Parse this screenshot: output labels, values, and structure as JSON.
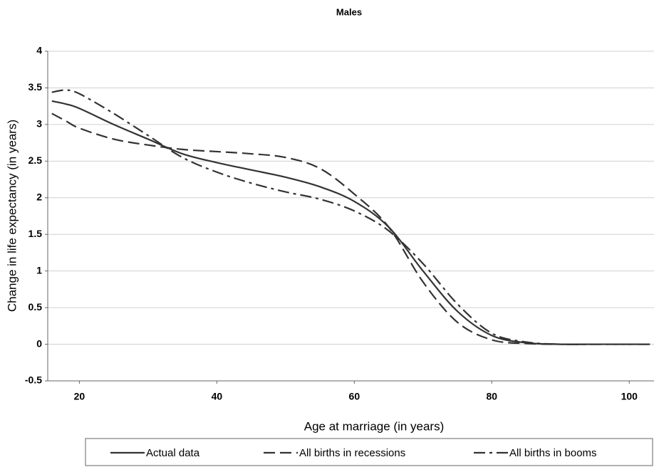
{
  "chart_data": {
    "type": "line",
    "title": "Males",
    "x_label": "Age at marriage (in years)",
    "y_label": "Change in life expectancy (in years)",
    "x": [
      16,
      18,
      20,
      25,
      30,
      35,
      40,
      45,
      50,
      55,
      60,
      65,
      70,
      75,
      80,
      85,
      90,
      95,
      100,
      103
    ],
    "series": [
      {
        "name": "Actual data",
        "color": "#333333",
        "dash": "solid",
        "values": [
          3.32,
          3.28,
          3.22,
          3.0,
          2.8,
          2.6,
          2.48,
          2.38,
          2.28,
          2.15,
          1.95,
          1.6,
          1.0,
          0.45,
          0.12,
          0.02,
          0,
          0,
          0,
          0
        ]
      },
      {
        "name": "All births in recessions",
        "color": "#333333",
        "dash": "dashed",
        "values": [
          3.15,
          3.05,
          2.95,
          2.8,
          2.72,
          2.66,
          2.63,
          2.6,
          2.55,
          2.4,
          2.05,
          1.6,
          0.85,
          0.3,
          0.06,
          0.01,
          0,
          0,
          0,
          0
        ]
      },
      {
        "name": "All births in booms",
        "color": "#333333",
        "dash": "dashdot",
        "values": [
          3.44,
          3.47,
          3.42,
          3.15,
          2.85,
          2.55,
          2.35,
          2.2,
          2.08,
          1.98,
          1.82,
          1.55,
          1.1,
          0.55,
          0.15,
          0.03,
          0,
          0,
          0,
          0
        ]
      }
    ],
    "xlim": [
      15.4,
      103.6
    ],
    "xticks": [
      20,
      40,
      60,
      80,
      100
    ],
    "ylim": [
      -0.5,
      4
    ],
    "yticks": [
      -0.5,
      0,
      0.5,
      1,
      1.5,
      2,
      2.5,
      3,
      3.5,
      4
    ],
    "grid": true,
    "legend": "bottom"
  }
}
